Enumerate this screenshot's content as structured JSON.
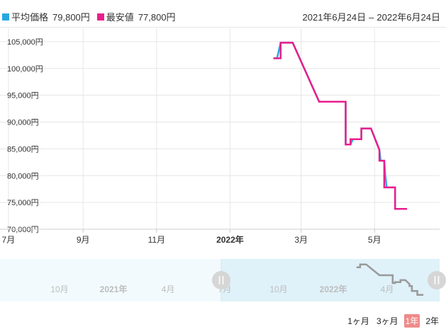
{
  "legend": {
    "items": [
      {
        "label": "平均価格",
        "value": "79,800円",
        "color": "#29a8e0"
      },
      {
        "label": "最安値",
        "value": "77,800円",
        "color": "#e91e8c"
      }
    ]
  },
  "date_range": {
    "start": "2021年6月24日",
    "separator": "–",
    "end": "2022年6月24日"
  },
  "range_buttons": [
    {
      "label": "1ヶ月",
      "active": false
    },
    {
      "label": "3ヶ月",
      "active": false
    },
    {
      "label": "1年",
      "active": true
    },
    {
      "label": "2年",
      "active": false
    }
  ],
  "chart_data": {
    "type": "line",
    "ylim": [
      70000,
      107500
    ],
    "yticks": [
      70000,
      75000,
      80000,
      85000,
      90000,
      95000,
      100000,
      105000
    ],
    "ytick_labels": [
      "70,000円",
      "75,000円",
      "80,000円",
      "85,000円",
      "90,000円",
      "95,000円",
      "100,000円",
      "105,000円"
    ],
    "xlim": [
      "2021-06-24",
      "2022-06-24"
    ],
    "xticks": [
      {
        "date": "2021-07-01",
        "label": "7月",
        "bold": false
      },
      {
        "date": "2021-09-01",
        "label": "9月",
        "bold": false
      },
      {
        "date": "2021-11-01",
        "label": "11月",
        "bold": false
      },
      {
        "date": "2022-01-01",
        "label": "2022年",
        "bold": true
      },
      {
        "date": "2022-03-01",
        "label": "3月",
        "bold": false
      },
      {
        "date": "2022-05-01",
        "label": "5月",
        "bold": false
      }
    ],
    "grid": true,
    "series": [
      {
        "name": "平均価格",
        "color": "#29a8e0",
        "points": [
          [
            "2022-02-06",
            101900
          ],
          [
            "2022-02-09",
            101900
          ],
          [
            "2022-02-12",
            104800
          ],
          [
            "2022-02-22",
            104800
          ],
          [
            "2022-03-16",
            93800
          ],
          [
            "2022-04-07",
            93800
          ],
          [
            "2022-04-07",
            85800
          ],
          [
            "2022-04-11",
            85800
          ],
          [
            "2022-04-13",
            86800
          ],
          [
            "2022-04-20",
            86800
          ],
          [
            "2022-04-20",
            88800
          ],
          [
            "2022-04-28",
            88800
          ],
          [
            "2022-05-05",
            84800
          ],
          [
            "2022-05-06",
            82800
          ],
          [
            "2022-05-09",
            82800
          ],
          [
            "2022-05-10",
            79800
          ],
          [
            "2022-05-11",
            77800
          ],
          [
            "2022-05-18",
            77800
          ],
          [
            "2022-05-18",
            73800
          ],
          [
            "2022-05-28",
            73800
          ]
        ]
      },
      {
        "name": "最安値",
        "color": "#e91e8c",
        "points": [
          [
            "2022-02-06",
            101900
          ],
          [
            "2022-02-12",
            101900
          ],
          [
            "2022-02-12",
            104800
          ],
          [
            "2022-02-22",
            104800
          ],
          [
            "2022-03-16",
            93800
          ],
          [
            "2022-04-07",
            93800
          ],
          [
            "2022-04-07",
            85800
          ],
          [
            "2022-04-11",
            85800
          ],
          [
            "2022-04-11",
            86800
          ],
          [
            "2022-04-20",
            86800
          ],
          [
            "2022-04-20",
            88800
          ],
          [
            "2022-04-28",
            88800
          ],
          [
            "2022-05-05",
            84800
          ],
          [
            "2022-05-05",
            82800
          ],
          [
            "2022-05-09",
            82800
          ],
          [
            "2022-05-09",
            77800
          ],
          [
            "2022-05-18",
            77800
          ],
          [
            "2022-05-18",
            73800
          ],
          [
            "2022-05-28",
            73800
          ]
        ]
      }
    ],
    "navigator": {
      "labels": [
        "10月",
        "2021年",
        "4月",
        "7月",
        "10月",
        "2022年",
        "4月"
      ],
      "series_color": "#999999"
    }
  }
}
